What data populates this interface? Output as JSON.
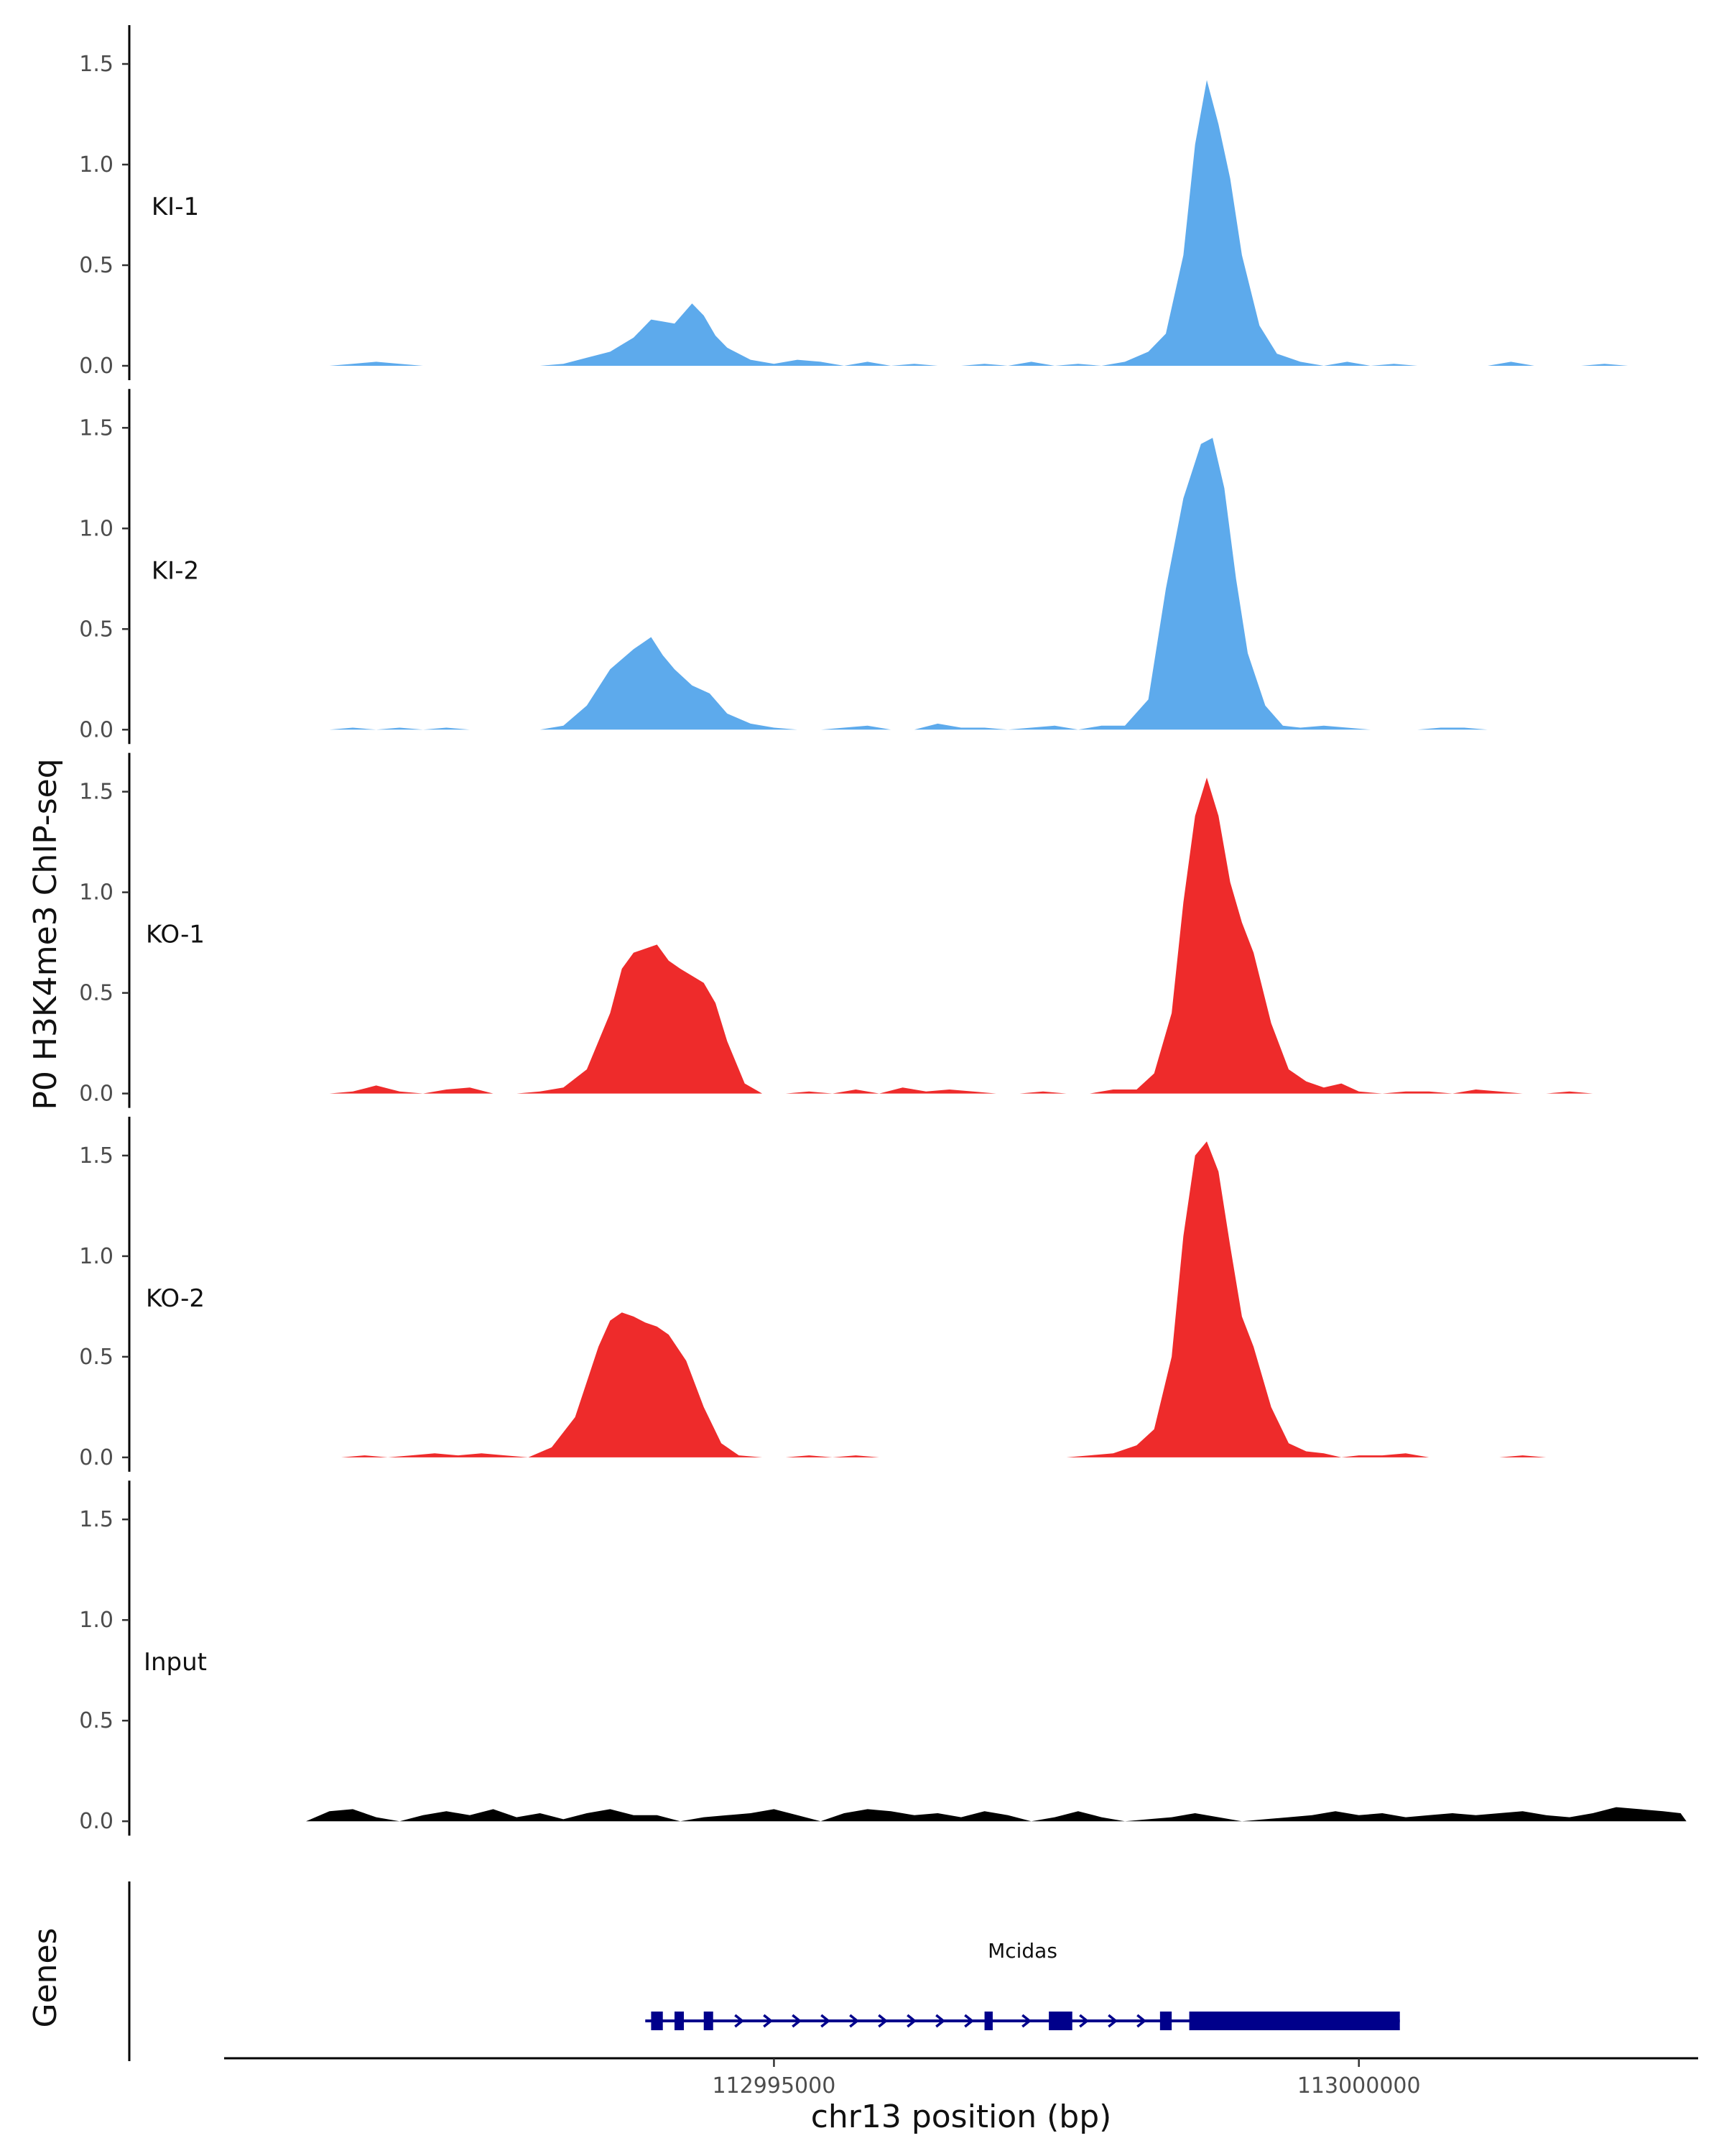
{
  "chart_data": {
    "type": "area",
    "ylabel": "P0 H3K4me3 ChIP-seq",
    "xlabel": "chr13 position (bp)",
    "xlim": [
      112990300,
      113002900
    ],
    "ylim": [
      0,
      1.65
    ],
    "yticks": [
      0.0,
      0.5,
      1.0,
      1.5
    ],
    "ytick_labels": [
      "0.0",
      "0.5",
      "1.0",
      "1.5"
    ],
    "xticks": [
      112995000,
      113000000
    ],
    "xtick_labels": [
      "112995000",
      "113000000"
    ],
    "colors": {
      "KI": "#5DAAEC",
      "KO": "#EE2B2B",
      "Input": "#000000",
      "gene": "#00008B"
    },
    "tracks": [
      {
        "name": "KI-1",
        "color": "#5DAAEC",
        "x": [
          112991200,
          112991400,
          112991600,
          112991800,
          112992000,
          112992200,
          112992400,
          112992600,
          112992800,
          112993000,
          112993200,
          112993400,
          112993600,
          112993800,
          112993950,
          112994050,
          112994150,
          112994300,
          112994400,
          112994500,
          112994600,
          112994800,
          112995000,
          112995200,
          112995400,
          112995600,
          112995800,
          112996000,
          112996200,
          112996400,
          112996600,
          112996800,
          112997000,
          112997200,
          112997400,
          112997600,
          112997800,
          112998000,
          112998200,
          112998350,
          112998500,
          112998600,
          112998700,
          112998800,
          112998900,
          112999000,
          112999150,
          112999300,
          112999500,
          112999700,
          112999900,
          113000100,
          113000300,
          113000500,
          113000700,
          113000900,
          113001100,
          113001300,
          113001500,
          113001700,
          113001900,
          113002100,
          113002300,
          113002500
        ],
        "values": [
          0.0,
          0.01,
          0.02,
          0.01,
          0.0,
          0.0,
          0.0,
          0.0,
          0.0,
          0.0,
          0.01,
          0.04,
          0.07,
          0.14,
          0.23,
          0.22,
          0.21,
          0.31,
          0.25,
          0.15,
          0.09,
          0.03,
          0.01,
          0.03,
          0.02,
          0.0,
          0.02,
          0.0,
          0.01,
          0.0,
          0.0,
          0.01,
          0.0,
          0.02,
          0.0,
          0.01,
          0.0,
          0.02,
          0.07,
          0.16,
          0.55,
          1.1,
          1.42,
          1.2,
          0.93,
          0.55,
          0.2,
          0.06,
          0.02,
          0.0,
          0.02,
          0.0,
          0.01,
          0.0,
          0.0,
          0.0,
          0.0,
          0.02,
          0.0,
          0.0,
          0.0,
          0.01,
          0.0,
          0.0
        ]
      },
      {
        "name": "KI-2",
        "color": "#5DAAEC",
        "x": [
          112991200,
          112991400,
          112991600,
          112991800,
          112992000,
          112992200,
          112992400,
          112992600,
          112992800,
          112993000,
          112993200,
          112993400,
          112993600,
          112993800,
          112993950,
          112994050,
          112994150,
          112994300,
          112994450,
          112994600,
          112994800,
          112995000,
          112995200,
          112995400,
          112995600,
          112995800,
          112996000,
          112996200,
          112996400,
          112996600,
          112996800,
          112997000,
          112997200,
          112997400,
          112997600,
          112997800,
          112998000,
          112998200,
          112998350,
          112998500,
          112998650,
          112998750,
          112998850,
          112998950,
          112999050,
          112999200,
          112999350,
          112999500,
          112999700,
          112999900,
          113000100,
          113000300,
          113000500,
          113000700,
          113000900,
          113001100,
          113001300,
          113001500,
          113001700,
          113001900,
          113002100,
          113002300
        ],
        "values": [
          0.0,
          0.01,
          0.0,
          0.01,
          0.0,
          0.01,
          0.0,
          0.0,
          0.0,
          0.0,
          0.02,
          0.12,
          0.3,
          0.4,
          0.46,
          0.37,
          0.3,
          0.22,
          0.18,
          0.08,
          0.03,
          0.01,
          0.0,
          0.0,
          0.01,
          0.02,
          0.0,
          0.0,
          0.03,
          0.01,
          0.01,
          0.0,
          0.01,
          0.02,
          0.0,
          0.02,
          0.02,
          0.15,
          0.7,
          1.15,
          1.42,
          1.45,
          1.2,
          0.75,
          0.38,
          0.12,
          0.02,
          0.01,
          0.02,
          0.01,
          0.0,
          0.0,
          0.0,
          0.01,
          0.01,
          0.0,
          0.0,
          0.0,
          0.0,
          0.0,
          0.0,
          0.0
        ]
      },
      {
        "name": "KO-1",
        "color": "#EE2B2B",
        "x": [
          112991200,
          112991400,
          112991600,
          112991800,
          112992000,
          112992200,
          112992400,
          112992600,
          112992800,
          112993000,
          112993200,
          112993400,
          112993600,
          112993700,
          112993800,
          112993900,
          112994000,
          112994100,
          112994200,
          112994400,
          112994500,
          112994600,
          112994750,
          112994900,
          112995100,
          112995300,
          112995500,
          112995700,
          112995900,
          112996100,
          112996300,
          112996500,
          112996700,
          112996900,
          112997100,
          112997300,
          112997500,
          112997700,
          112997900,
          112998100,
          112998250,
          112998400,
          112998500,
          112998600,
          112998700,
          112998800,
          112998900,
          112999000,
          112999100,
          112999250,
          112999400,
          112999550,
          112999700,
          112999850,
          113000000,
          113000200,
          113000400,
          113000600,
          113000800,
          113001000,
          113001200,
          113001400,
          113001600,
          113001800,
          113002000,
          113002200
        ],
        "values": [
          0.0,
          0.01,
          0.04,
          0.01,
          0.0,
          0.02,
          0.03,
          0.0,
          0.0,
          0.01,
          0.03,
          0.12,
          0.4,
          0.62,
          0.7,
          0.72,
          0.74,
          0.66,
          0.62,
          0.55,
          0.45,
          0.26,
          0.05,
          0.0,
          0.0,
          0.01,
          0.0,
          0.02,
          0.0,
          0.03,
          0.01,
          0.02,
          0.01,
          0.0,
          0.0,
          0.01,
          0.0,
          0.0,
          0.02,
          0.02,
          0.1,
          0.4,
          0.95,
          1.38,
          1.57,
          1.38,
          1.05,
          0.85,
          0.7,
          0.35,
          0.12,
          0.06,
          0.03,
          0.05,
          0.01,
          0.0,
          0.01,
          0.01,
          0.0,
          0.02,
          0.01,
          0.0,
          0.0,
          0.01,
          0.0,
          0.0
        ]
      },
      {
        "name": "KO-2",
        "color": "#EE2B2B",
        "x": [
          112991100,
          112991300,
          112991500,
          112991700,
          112991900,
          112992100,
          112992300,
          112992500,
          112992700,
          112992900,
          112993100,
          112993300,
          112993500,
          112993600,
          112993700,
          112993800,
          112993900,
          112994000,
          112994100,
          112994250,
          112994400,
          112994550,
          112994700,
          112994900,
          112995100,
          112995300,
          112995500,
          112995700,
          112995900,
          112996100,
          112996300,
          112996500,
          112996700,
          112996900,
          112997100,
          112997300,
          112997500,
          112997700,
          112997900,
          112998100,
          112998250,
          112998400,
          112998500,
          112998600,
          112998700,
          112998800,
          112998900,
          112999000,
          112999100,
          112999250,
          112999400,
          112999550,
          112999700,
          112999850,
          113000000,
          113000200,
          113000400,
          113000600,
          113000800,
          113001000,
          113001200,
          113001400,
          113001600,
          113001800,
          113002000,
          113002200,
          113002400
        ],
        "values": [
          0.0,
          0.0,
          0.01,
          0.0,
          0.01,
          0.02,
          0.01,
          0.02,
          0.01,
          0.0,
          0.05,
          0.2,
          0.55,
          0.68,
          0.72,
          0.7,
          0.67,
          0.65,
          0.61,
          0.48,
          0.25,
          0.07,
          0.01,
          0.0,
          0.0,
          0.01,
          0.0,
          0.01,
          0.0,
          0.0,
          0.0,
          0.0,
          0.0,
          0.0,
          0.0,
          0.0,
          0.0,
          0.01,
          0.02,
          0.06,
          0.14,
          0.5,
          1.1,
          1.5,
          1.57,
          1.42,
          1.05,
          0.7,
          0.55,
          0.25,
          0.07,
          0.03,
          0.02,
          0.0,
          0.01,
          0.01,
          0.02,
          0.0,
          0.0,
          0.0,
          0.0,
          0.01,
          0.0,
          0.0,
          0.0,
          0.0,
          0.0
        ]
      },
      {
        "name": "Input",
        "color": "#000000",
        "x": [
          112991000,
          112991200,
          112991400,
          112991600,
          112991800,
          112992000,
          112992200,
          112992400,
          112992600,
          112992800,
          112993000,
          112993200,
          112993400,
          112993600,
          112993800,
          112994000,
          112994200,
          112994400,
          112994600,
          112994800,
          112995000,
          112995200,
          112995400,
          112995600,
          112995800,
          112996000,
          112996200,
          112996400,
          112996600,
          112996800,
          112997000,
          112997200,
          112997400,
          112997600,
          112997800,
          112998000,
          112998200,
          112998400,
          112998600,
          112998800,
          112999000,
          112999200,
          112999400,
          112999600,
          112999800,
          113000000,
          113000200,
          113000400,
          113000600,
          113000800,
          113001000,
          113001200,
          113001400,
          113001600,
          113001800,
          113002000,
          113002200,
          113002400,
          113002600,
          113002750,
          113002800
        ],
        "values": [
          0.0,
          0.05,
          0.06,
          0.02,
          0.0,
          0.03,
          0.05,
          0.03,
          0.06,
          0.02,
          0.04,
          0.01,
          0.04,
          0.06,
          0.03,
          0.03,
          0.0,
          0.02,
          0.03,
          0.04,
          0.06,
          0.03,
          0.0,
          0.04,
          0.06,
          0.05,
          0.03,
          0.04,
          0.02,
          0.05,
          0.03,
          0.0,
          0.02,
          0.05,
          0.02,
          0.0,
          0.01,
          0.02,
          0.04,
          0.02,
          0.0,
          0.01,
          0.02,
          0.03,
          0.05,
          0.03,
          0.04,
          0.02,
          0.03,
          0.04,
          0.03,
          0.04,
          0.05,
          0.03,
          0.02,
          0.04,
          0.07,
          0.06,
          0.05,
          0.04,
          0.0
        ]
      }
    ],
    "genes_track": {
      "title": "Genes",
      "genes": [
        {
          "name": "Mcidas",
          "start": 112993900,
          "end": 113000350,
          "strand": "+",
          "exons": [
            [
              112993950,
              112994050
            ],
            [
              112994150,
              112994230
            ],
            [
              112994400,
              112994480
            ],
            [
              112996800,
              112996870
            ],
            [
              112997350,
              112997550
            ],
            [
              112998300,
              112998400
            ],
            [
              112998550,
              113000350
            ]
          ]
        }
      ]
    }
  }
}
